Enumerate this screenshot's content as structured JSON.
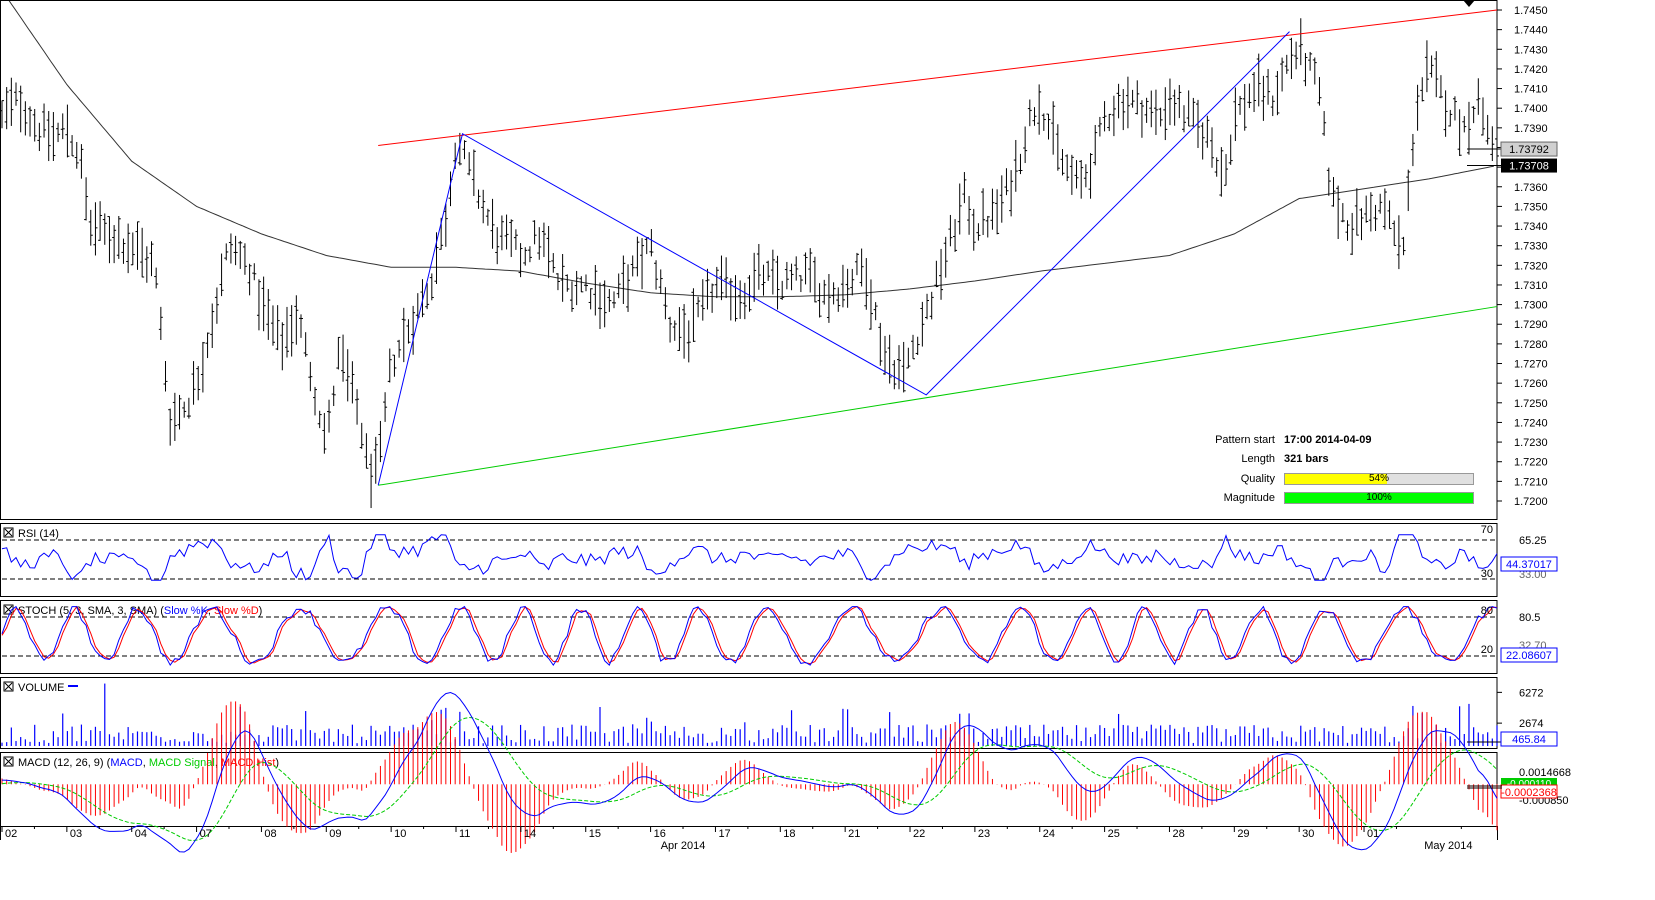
{
  "chart_data": {
    "type": "candlestick-ohlc",
    "main": {
      "ylim": [
        1.7195,
        1.7455
      ],
      "y_ticks": [
        "1.7450",
        "1.7440",
        "1.7430",
        "1.7420",
        "1.7410",
        "1.7400",
        "1.7390",
        "1.7380",
        "1.7370",
        "1.7360",
        "1.7350",
        "1.7340",
        "1.7330",
        "1.7320",
        "1.7310",
        "1.7300",
        "1.7290",
        "1.7280",
        "1.7270",
        "1.7260",
        "1.7250",
        "1.7240",
        "1.7230",
        "1.7220",
        "1.7210",
        "1.7200"
      ],
      "current_price": "1.73792",
      "ma_value": "1.73708",
      "price_path": [
        {
          "d": 0.0,
          "p": 1.7395
        },
        {
          "d": 0.25,
          "p": 1.7405
        },
        {
          "d": 0.55,
          "p": 1.739
        },
        {
          "d": 0.8,
          "p": 1.7385
        },
        {
          "d": 1.0,
          "p": 1.739
        },
        {
          "d": 1.2,
          "p": 1.7375
        },
        {
          "d": 1.35,
          "p": 1.734
        },
        {
          "d": 1.7,
          "p": 1.7335
        },
        {
          "d": 2.0,
          "p": 1.733
        },
        {
          "d": 2.35,
          "p": 1.732
        },
        {
          "d": 2.6,
          "p": 1.724
        },
        {
          "d": 2.85,
          "p": 1.725
        },
        {
          "d": 3.0,
          "p": 1.726
        },
        {
          "d": 3.3,
          "p": 1.73
        },
        {
          "d": 3.5,
          "p": 1.733
        },
        {
          "d": 3.8,
          "p": 1.732
        },
        {
          "d": 4.0,
          "p": 1.73
        },
        {
          "d": 4.3,
          "p": 1.728
        },
        {
          "d": 4.55,
          "p": 1.7295
        },
        {
          "d": 4.8,
          "p": 1.726
        },
        {
          "d": 5.0,
          "p": 1.723
        },
        {
          "d": 5.2,
          "p": 1.7275
        },
        {
          "d": 5.5,
          "p": 1.7245
        },
        {
          "d": 5.65,
          "p": 1.7215
        },
        {
          "d": 5.8,
          "p": 1.7215
        },
        {
          "d": 6.0,
          "p": 1.727
        },
        {
          "d": 6.3,
          "p": 1.729
        },
        {
          "d": 6.6,
          "p": 1.731
        },
        {
          "d": 6.85,
          "p": 1.7345
        },
        {
          "d": 7.0,
          "p": 1.7385
        },
        {
          "d": 7.3,
          "p": 1.736
        },
        {
          "d": 7.6,
          "p": 1.7335
        },
        {
          "d": 7.85,
          "p": 1.733
        },
        {
          "d": 8.0,
          "p": 1.7325
        },
        {
          "d": 8.3,
          "p": 1.7335
        },
        {
          "d": 8.6,
          "p": 1.731
        },
        {
          "d": 9.0,
          "p": 1.731
        },
        {
          "d": 9.4,
          "p": 1.73
        },
        {
          "d": 9.7,
          "p": 1.7315
        },
        {
          "d": 10.0,
          "p": 1.733
        },
        {
          "d": 10.3,
          "p": 1.729
        },
        {
          "d": 10.6,
          "p": 1.7285
        },
        {
          "d": 11.0,
          "p": 1.731
        },
        {
          "d": 11.4,
          "p": 1.7305
        },
        {
          "d": 11.7,
          "p": 1.7315
        },
        {
          "d": 12.0,
          "p": 1.731
        },
        {
          "d": 12.4,
          "p": 1.7315
        },
        {
          "d": 12.7,
          "p": 1.7305
        },
        {
          "d": 13.0,
          "p": 1.731
        },
        {
          "d": 13.3,
          "p": 1.732
        },
        {
          "d": 13.6,
          "p": 1.7275
        },
        {
          "d": 13.9,
          "p": 1.7265
        },
        {
          "d": 14.0,
          "p": 1.7275
        },
        {
          "d": 14.3,
          "p": 1.73
        },
        {
          "d": 14.6,
          "p": 1.733
        },
        {
          "d": 14.85,
          "p": 1.7355
        },
        {
          "d": 15.0,
          "p": 1.734
        },
        {
          "d": 15.3,
          "p": 1.7345
        },
        {
          "d": 15.6,
          "p": 1.7365
        },
        {
          "d": 15.85,
          "p": 1.7395
        },
        {
          "d": 16.0,
          "p": 1.7405
        },
        {
          "d": 16.3,
          "p": 1.7375
        },
        {
          "d": 16.6,
          "p": 1.736
        },
        {
          "d": 16.85,
          "p": 1.7375
        },
        {
          "d": 17.0,
          "p": 1.7395
        },
        {
          "d": 17.3,
          "p": 1.7405
        },
        {
          "d": 17.6,
          "p": 1.74
        },
        {
          "d": 17.85,
          "p": 1.7395
        },
        {
          "d": 18.0,
          "p": 1.7405
        },
        {
          "d": 18.3,
          "p": 1.7395
        },
        {
          "d": 18.6,
          "p": 1.7385
        },
        {
          "d": 18.85,
          "p": 1.7365
        },
        {
          "d": 19.0,
          "p": 1.7395
        },
        {
          "d": 19.3,
          "p": 1.741
        },
        {
          "d": 19.6,
          "p": 1.7405
        },
        {
          "d": 19.85,
          "p": 1.7425
        },
        {
          "d": 20.0,
          "p": 1.743
        },
        {
          "d": 20.3,
          "p": 1.741
        },
        {
          "d": 20.5,
          "p": 1.7355
        },
        {
          "d": 20.8,
          "p": 1.734
        },
        {
          "d": 21.0,
          "p": 1.7345
        },
        {
          "d": 21.3,
          "p": 1.735
        },
        {
          "d": 21.6,
          "p": 1.7325
        },
        {
          "d": 21.8,
          "p": 1.74
        },
        {
          "d": 22.0,
          "p": 1.742
        },
        {
          "d": 22.3,
          "p": 1.74
        },
        {
          "d": 22.55,
          "p": 1.739
        },
        {
          "d": 22.75,
          "p": 1.7405
        },
        {
          "d": 22.95,
          "p": 1.7385
        },
        {
          "d": 23.05,
          "p": 1.7379
        }
      ],
      "ma_path": [
        {
          "d": 0.0,
          "p": 1.746
        },
        {
          "d": 1.0,
          "p": 1.7412
        },
        {
          "d": 2.0,
          "p": 1.7373
        },
        {
          "d": 3.0,
          "p": 1.735
        },
        {
          "d": 4.0,
          "p": 1.7336
        },
        {
          "d": 5.0,
          "p": 1.7325
        },
        {
          "d": 6.0,
          "p": 1.7319
        },
        {
          "d": 7.0,
          "p": 1.7319
        },
        {
          "d": 8.0,
          "p": 1.7317
        },
        {
          "d": 9.0,
          "p": 1.7311
        },
        {
          "d": 10.0,
          "p": 1.7306
        },
        {
          "d": 11.0,
          "p": 1.7304
        },
        {
          "d": 12.0,
          "p": 1.7304
        },
        {
          "d": 13.0,
          "p": 1.7305
        },
        {
          "d": 14.0,
          "p": 1.7308
        },
        {
          "d": 15.0,
          "p": 1.7312
        },
        {
          "d": 16.0,
          "p": 1.7317
        },
        {
          "d": 17.0,
          "p": 1.7321
        },
        {
          "d": 18.0,
          "p": 1.7325
        },
        {
          "d": 19.0,
          "p": 1.7336
        },
        {
          "d": 20.0,
          "p": 1.7354
        },
        {
          "d": 21.0,
          "p": 1.7359
        },
        {
          "d": 22.0,
          "p": 1.7364
        },
        {
          "d": 23.05,
          "p": 1.73708
        }
      ],
      "resistance_line": [
        {
          "d": 5.8,
          "p": 1.7381
        },
        {
          "d": 23.05,
          "p": 1.745
        }
      ],
      "support_line": [
        {
          "d": 5.8,
          "p": 1.7208
        },
        {
          "d": 23.05,
          "p": 1.7299
        }
      ],
      "pattern_zigzag": [
        {
          "d": 5.8,
          "p": 1.7208
        },
        {
          "d": 7.1,
          "p": 1.7387
        },
        {
          "d": 14.25,
          "p": 1.7254
        },
        {
          "d": 19.85,
          "p": 1.7439
        }
      ]
    },
    "pattern_info": {
      "pattern_start_label": "Pattern start",
      "pattern_start": "17:00 2014-04-09",
      "length_label": "Length",
      "length": "321 bars",
      "quality_label": "Quality",
      "quality_pct": 54,
      "quality_text": "54%",
      "magnitude_label": "Magnitude",
      "magnitude_pct": 100,
      "magnitude_text": "100%"
    },
    "x_axis": {
      "day_labels": [
        "02",
        "03",
        "04",
        "07",
        "08",
        "09",
        "10",
        "11",
        "14",
        "15",
        "16",
        "17",
        "18",
        "21",
        "22",
        "23",
        "24",
        "25",
        "28",
        "29",
        "30",
        "01"
      ],
      "month_labels": [
        {
          "d": 10.5,
          "text": "Apr 2014"
        },
        {
          "d": 22.3,
          "text": "May 2014"
        }
      ]
    },
    "rsi": {
      "title": "RSI (14)",
      "levels": [
        "70",
        "30"
      ],
      "tick": "65.25",
      "value": "44.37017",
      "hidden_tick": "33.00",
      "ylim": [
        0,
        100
      ]
    },
    "stoch": {
      "title": "STOCH (5, 3, SMA, 3, SMA)",
      "legend": [
        "Slow %K",
        "Slow %D"
      ],
      "levels": [
        "80",
        "20"
      ],
      "tick": "80.5",
      "value": "22.08607",
      "hidden_tick": "32.70"
    },
    "volume": {
      "title": "VOLUME",
      "ticks": [
        "6272",
        "2674"
      ],
      "value": "465.84",
      "ymax": 7600
    },
    "macd": {
      "title": "MACD (12, 26, 9)",
      "legend": [
        "MACD",
        "MACD Signal",
        "MACD Hist"
      ],
      "ticks": [
        "0.0014668",
        "-0.000850"
      ],
      "value_main": "-0.0002368",
      "value_signal": "-0.000110",
      "ylim": [
        -0.0024,
        0.0018
      ]
    },
    "colors": {
      "resistance": "#ff0000",
      "support": "#00cc00",
      "pattern": "#0000ff",
      "ma": "#000000",
      "rsi": "#0000ff",
      "stoch_k": "#0000ff",
      "stoch_d": "#ff0000",
      "volume": "#0000ff",
      "macd": "#0000ff",
      "signal": "#00cc00",
      "hist": "#ff0000",
      "quality": "#ffff00",
      "magnitude": "#00ff00"
    }
  }
}
